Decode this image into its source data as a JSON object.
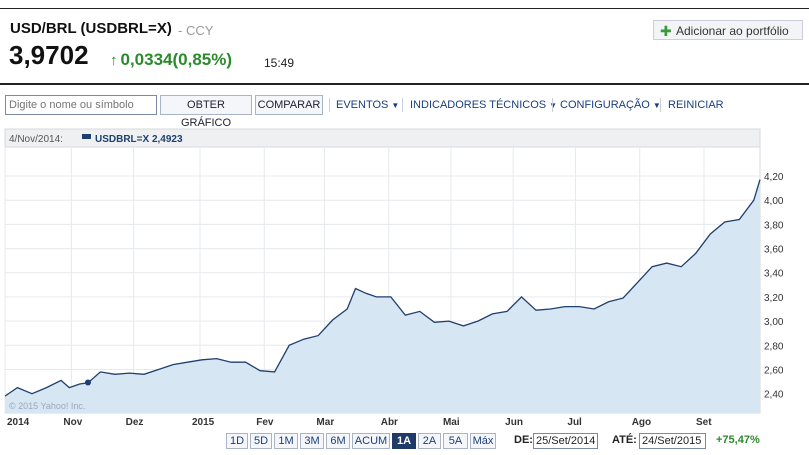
{
  "header": {
    "title": "USD/BRL (USDBRL=X)",
    "exchange": "- CCY",
    "price": "3,9702",
    "change": "0,0334(0,85%)",
    "time": "15:49",
    "portfolio_label": "Adicionar ao portfólio"
  },
  "toolbar": {
    "search_placeholder": "Digite o nome ou símbolo",
    "chart_button": "OBTER GRÁFICO",
    "compare_button": "COMPARAR",
    "events": "EVENTOS",
    "indicators": "INDICADORES TÉCNICOS",
    "config": "CONFIGURAÇÃO",
    "reset": "REINICIAR"
  },
  "colors": {
    "line": "#1f3f6e",
    "fill": "#d6e6f2",
    "up": "#2b8a2b"
  },
  "chart_data": {
    "type": "area",
    "legend": {
      "date": "4/Nov/2014:",
      "label": "USDBRL=X 2,4923"
    },
    "copyright": "© 2015 Yahoo! Inc.",
    "x_ticks": [
      "2014",
      "Nov",
      "Dez",
      "2015",
      "Fev",
      "Mar",
      "Abr",
      "Mai",
      "Jun",
      "Jul",
      "Ago",
      "Set"
    ],
    "y_ticks": [
      "2,40",
      "2,60",
      "2,80",
      "3,00",
      "3,20",
      "3,40",
      "3,60",
      "3,80",
      "4,00",
      "4,20"
    ],
    "ylim": [
      2.24,
      4.44
    ],
    "x_start": "2014-09-25",
    "x_end": "2015-09-24",
    "x": [
      "2014-09-25",
      "2014-10-01",
      "2014-10-08",
      "2014-10-15",
      "2014-10-22",
      "2014-10-26",
      "2014-10-31",
      "2014-11-04",
      "2014-11-10",
      "2014-11-17",
      "2014-11-24",
      "2014-12-01",
      "2014-12-08",
      "2014-12-15",
      "2014-12-22",
      "2014-12-29",
      "2015-01-05",
      "2015-01-12",
      "2015-01-19",
      "2015-01-26",
      "2015-02-02",
      "2015-02-09",
      "2015-02-16",
      "2015-02-23",
      "2015-03-02",
      "2015-03-09",
      "2015-03-13",
      "2015-03-18",
      "2015-03-23",
      "2015-03-30",
      "2015-04-06",
      "2015-04-13",
      "2015-04-20",
      "2015-04-27",
      "2015-05-04",
      "2015-05-11",
      "2015-05-18",
      "2015-05-25",
      "2015-06-01",
      "2015-06-08",
      "2015-06-15",
      "2015-06-22",
      "2015-06-29",
      "2015-07-06",
      "2015-07-13",
      "2015-07-20",
      "2015-07-27",
      "2015-08-03",
      "2015-08-10",
      "2015-08-17",
      "2015-08-24",
      "2015-08-31",
      "2015-09-07",
      "2015-09-14",
      "2015-09-21",
      "2015-09-24"
    ],
    "values": [
      2.38,
      2.45,
      2.4,
      2.45,
      2.51,
      2.45,
      2.48,
      2.49,
      2.58,
      2.56,
      2.57,
      2.56,
      2.6,
      2.64,
      2.66,
      2.68,
      2.69,
      2.66,
      2.66,
      2.59,
      2.58,
      2.8,
      2.85,
      2.88,
      3.01,
      3.1,
      3.27,
      3.23,
      3.2,
      3.2,
      3.05,
      3.08,
      2.99,
      3.0,
      2.96,
      3.0,
      3.06,
      3.08,
      3.2,
      3.09,
      3.1,
      3.12,
      3.12,
      3.1,
      3.16,
      3.19,
      3.32,
      3.45,
      3.48,
      3.45,
      3.56,
      3.72,
      3.82,
      3.84,
      4.0,
      4.17
    ],
    "highlight": {
      "x": "2014-11-04",
      "y": 2.4923
    }
  },
  "ranges": [
    "1D",
    "5D",
    "1M",
    "3M",
    "6M",
    "ACUM",
    "1A",
    "2A",
    "5A",
    "Máx"
  ],
  "active_range": "1A",
  "date_range": {
    "from_label": "DE:",
    "from": "25/Set/2014",
    "to_label": "ATÉ:",
    "to": "24/Set/2015",
    "change": "+75,47%"
  }
}
